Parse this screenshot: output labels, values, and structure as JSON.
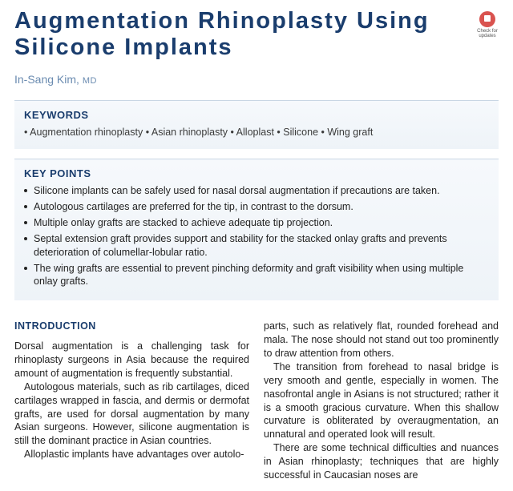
{
  "title": "Augmentation Rhinoplasty Using Silicone Implants",
  "badge": {
    "label": "Check for updates"
  },
  "author": {
    "name": "In-Sang Kim",
    "credentials": "MD"
  },
  "keywords": {
    "heading": "KEYWORDS",
    "items": [
      "Augmentation rhinoplasty",
      "Asian rhinoplasty",
      "Alloplast",
      "Silicone",
      "Wing graft"
    ]
  },
  "keypoints": {
    "heading": "KEY POINTS",
    "items": [
      "Silicone implants can be safely used for nasal dorsal augmentation if precautions are taken.",
      "Autologous cartilages are preferred for the tip, in contrast to the dorsum.",
      "Multiple onlay grafts are stacked to achieve adequate tip projection.",
      "Septal extension graft provides support and stability for the stacked onlay grafts and prevents deterioration of columellar-lobular ratio.",
      "The wing grafts are essential to prevent pinching deformity and graft visibility when using multiple onlay grafts."
    ]
  },
  "intro": {
    "heading": "INTRODUCTION",
    "left": [
      "Dorsal augmentation is a challenging task for rhinoplasty surgeons in Asia because the required amount of augmentation is frequently substantial.",
      "Autologous materials, such as rib cartilages, diced cartilages wrapped in fascia, and dermis or dermofat grafts, are used for dorsal augmentation by many Asian surgeons. However, silicone augmentation is still the dominant practice in Asian countries.",
      "Alloplastic implants have advantages over autolo-"
    ],
    "right": [
      "parts, such as relatively flat, rounded forehead and mala. The nose should not stand out too prominently to draw attention from others.",
      "The transition from forehead to nasal bridge is very smooth and gentle, especially in women. The nasofrontal angle in Asians is not structured; rather it is a smooth gracious curvature. When this shallow curvature is obliterated by overaugmentation, an unnatural and operated look will result.",
      "There are some technical difficulties and nuances in Asian rhinoplasty; techniques that are highly successful in Caucasian noses are"
    ]
  }
}
